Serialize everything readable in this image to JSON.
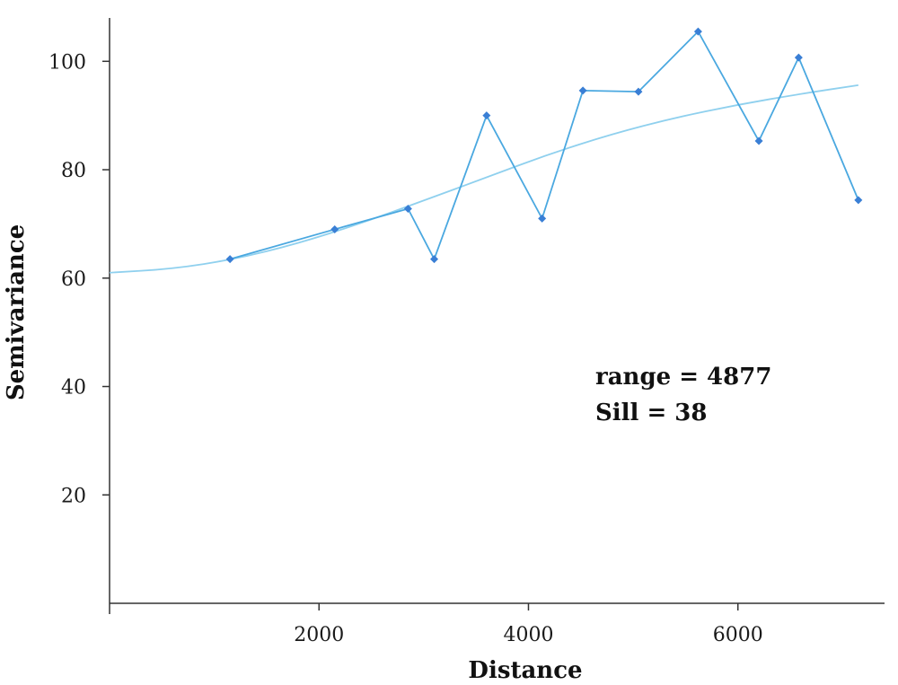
{
  "chart_data": {
    "type": "line",
    "title": "",
    "xlabel": "Distance",
    "ylabel": "Semivariance",
    "xlim": [
      0,
      7400
    ],
    "ylim": [
      0,
      108
    ],
    "x_ticks": [
      2000,
      4000,
      6000
    ],
    "y_ticks": [
      20,
      40,
      60,
      80,
      100
    ],
    "grid": false,
    "annotations": [
      "range = 4877",
      "Sill = 38"
    ],
    "series": [
      {
        "style": "line-markers",
        "color": "#4aa8e0",
        "marker_color": "#3a7fd5",
        "x": [
          1150,
          2150,
          2850,
          3100,
          3600,
          4130,
          4520,
          5050,
          5620,
          6200,
          6580,
          7150
        ],
        "y": [
          63.5,
          69,
          72.8,
          63.5,
          90,
          71,
          94.6,
          94.4,
          105.5,
          85.3,
          100.7,
          74.4
        ]
      },
      {
        "style": "line",
        "color": "#8fd0ee",
        "x": [
          0,
          600,
          1200,
          1800,
          2400,
          3000,
          3600,
          4200,
          4800,
          5400,
          6000,
          6600,
          7150
        ],
        "y": [
          61,
          61.7,
          63.5,
          66.4,
          70.1,
          74.3,
          78.6,
          82.9,
          86.6,
          89.6,
          92,
          94,
          95.6
        ]
      }
    ]
  }
}
